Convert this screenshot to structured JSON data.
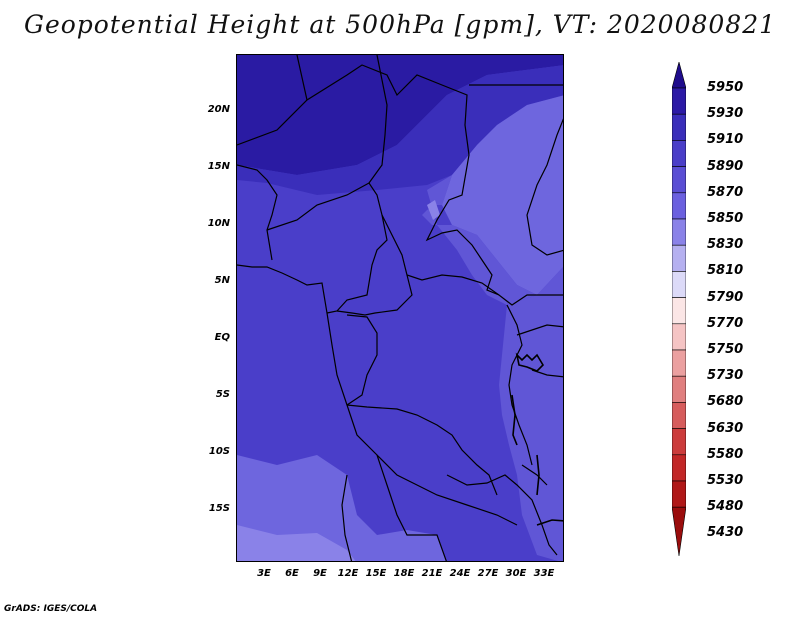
{
  "title": "Geopotential Height at 500hPa [gpm], VT: 2020080821",
  "credit": "GrADS: IGES/COLA",
  "lat_ticks": [
    {
      "label": "20N",
      "lat": 20
    },
    {
      "label": "15N",
      "lat": 15
    },
    {
      "label": "10N",
      "lat": 10
    },
    {
      "label": "5N",
      "lat": 5
    },
    {
      "label": "EQ",
      "lat": 0
    },
    {
      "label": "5S",
      "lat": -5
    },
    {
      "label": "10S",
      "lat": -10
    },
    {
      "label": "15S",
      "lat": -15
    }
  ],
  "lon_ticks": [
    {
      "label": "3E",
      "lon": 3
    },
    {
      "label": "6E",
      "lon": 6
    },
    {
      "label": "9E",
      "lon": 9
    },
    {
      "label": "12E",
      "lon": 12
    },
    {
      "label": "15E",
      "lon": 15
    },
    {
      "label": "18E",
      "lon": 18
    },
    {
      "label": "21E",
      "lon": 21
    },
    {
      "label": "24E",
      "lon": 24
    },
    {
      "label": "27E",
      "lon": 27
    },
    {
      "label": "30E",
      "lon": 30
    },
    {
      "label": "33E",
      "lon": 33
    }
  ],
  "colorbar": {
    "levels": [
      "5950",
      "5930",
      "5910",
      "5890",
      "5870",
      "5850",
      "5830",
      "5810",
      "5790",
      "5770",
      "5750",
      "5730",
      "5680",
      "5630",
      "5580",
      "5530",
      "5480",
      "5430"
    ],
    "colors": [
      "#1f0c8c",
      "#2c1aa6",
      "#3a2eba",
      "#4a3ec8",
      "#5a4ed4",
      "#6b60df",
      "#8a82e8",
      "#b5b0f0",
      "#dcdaf8",
      "#fbe6e6",
      "#f5c4c4",
      "#eba0a0",
      "#e07f7f",
      "#d65c5c",
      "#cc3c3c",
      "#c22727",
      "#b01818",
      "#9a0d0d"
    ]
  },
  "colors": {
    "deep": "#2a1ba3",
    "mid": "#3f33bd",
    "main": "#4a3ec9",
    "light": "#6056d6",
    "lighter": "#6e66de",
    "pale": "#8a82e8"
  }
}
